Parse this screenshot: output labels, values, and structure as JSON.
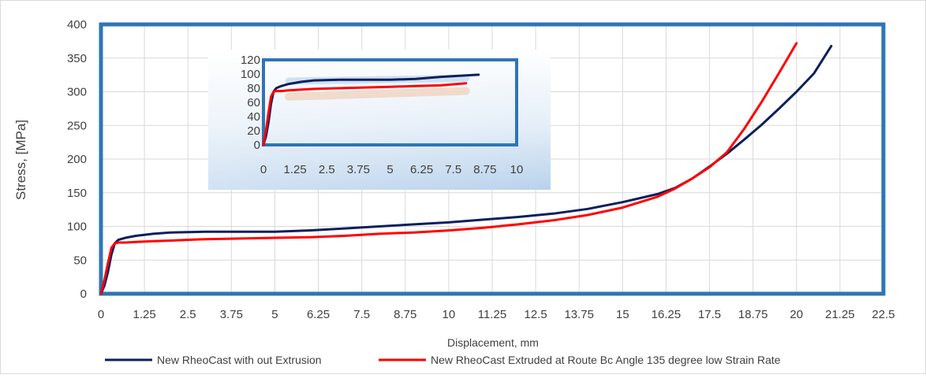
{
  "chart_data": {
    "type": "line",
    "xlabel": "Displacement, mm",
    "ylabel": "Stress, [MPa]",
    "xlim": [
      0,
      22.5
    ],
    "ylim": [
      0,
      400
    ],
    "xticks": [
      "0",
      "1.25",
      "2.5",
      "3.75",
      "5",
      "6.25",
      "7.5",
      "8.75",
      "10",
      "11.25",
      "12.5",
      "13.75",
      "15",
      "16.25",
      "17.5",
      "18.75",
      "20",
      "21.25",
      "22.5"
    ],
    "yticks": [
      "0",
      "50",
      "100",
      "150",
      "200",
      "250",
      "300",
      "350",
      "400"
    ],
    "grid": true,
    "legend_position": "bottom",
    "series": [
      {
        "name": "New RheoCast with out Extrusion",
        "color": "#0d1f5c",
        "x": [
          0,
          0.1,
          0.2,
          0.3,
          0.4,
          0.5,
          0.7,
          1.0,
          1.5,
          2.0,
          3.0,
          4.0,
          5.0,
          6.0,
          7.0,
          8.0,
          9.0,
          10.0,
          11.0,
          12.0,
          13.0,
          14.0,
          15.0,
          16.0,
          16.5,
          17.0,
          17.5,
          18.0,
          18.5,
          19.0,
          19.5,
          20.0,
          20.5,
          21.0
        ],
        "y": [
          0,
          12,
          32,
          58,
          75,
          80,
          83,
          86,
          89,
          91,
          92,
          92,
          92,
          94,
          97,
          100,
          103,
          106,
          110,
          114,
          119,
          126,
          136,
          148,
          157,
          171,
          189,
          208,
          229,
          251,
          275,
          300,
          327,
          368
        ]
      },
      {
        "name": "New RheoCast Extruded at Route Bc Angle 135 degree low Strain Rate",
        "color": "#ff0000",
        "x": [
          0,
          0.1,
          0.2,
          0.3,
          0.4,
          0.5,
          0.7,
          1.0,
          1.5,
          2.0,
          3.0,
          4.0,
          5.0,
          6.0,
          7.0,
          8.0,
          9.0,
          10.0,
          11.0,
          12.0,
          13.0,
          14.0,
          15.0,
          16.0,
          16.5,
          17.0,
          17.5,
          18.0,
          18.5,
          19.0,
          19.5,
          20.0
        ],
        "y": [
          0,
          20,
          45,
          68,
          75,
          76,
          76,
          77,
          78,
          79,
          81,
          82,
          83,
          84,
          86,
          89,
          91,
          94,
          98,
          103,
          109,
          117,
          128,
          144,
          156,
          171,
          188,
          210,
          245,
          285,
          328,
          372
        ]
      }
    ],
    "inset": {
      "xlim": [
        0,
        10
      ],
      "ylim": [
        0,
        120
      ],
      "xticks": [
        "0",
        "1.25",
        "2.5",
        "3.75",
        "5",
        "6.25",
        "7.5",
        "8.75",
        "10"
      ],
      "yticks": [
        "0",
        "20",
        "40",
        "60",
        "80",
        "100",
        "120"
      ],
      "series": [
        {
          "color": "#0d1f5c",
          "x": [
            0,
            0.1,
            0.2,
            0.3,
            0.4,
            0.5,
            0.7,
            1.0,
            1.5,
            2.0,
            3.0,
            4.0,
            5.0,
            6.0,
            7.0,
            8.0,
            8.5
          ],
          "y": [
            0,
            12,
            32,
            58,
            75,
            80,
            83,
            86,
            89,
            91,
            92,
            92,
            92,
            93,
            96,
            98,
            99
          ]
        },
        {
          "color": "#ff0000",
          "x": [
            0,
            0.1,
            0.2,
            0.3,
            0.4,
            0.5,
            0.7,
            1.0,
            1.5,
            2.0,
            3.0,
            4.0,
            5.0,
            6.0,
            7.0,
            8.0
          ],
          "y": [
            0,
            20,
            45,
            68,
            75,
            76,
            76,
            77,
            78,
            79,
            80,
            81,
            82,
            83,
            84,
            87
          ]
        }
      ]
    }
  }
}
